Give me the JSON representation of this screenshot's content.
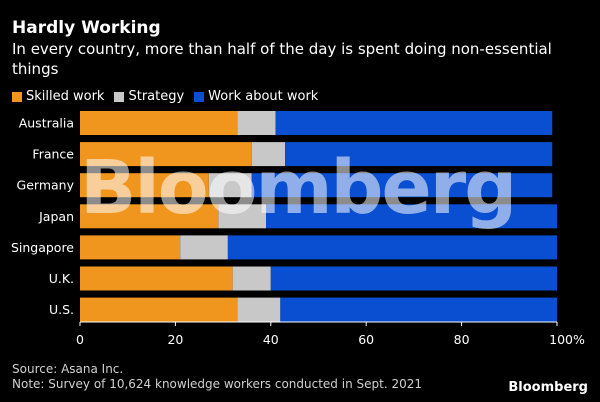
{
  "title": "Hardly Working",
  "subtitle": "In every country, more than half of the day is spent doing non-essential things",
  "watermark": "Bloomberg",
  "source": "Source: Asana Inc.",
  "note": "Note: Survey of 10,624 knowledge workers conducted in Sept. 2021",
  "brand": "Bloomberg",
  "colors": {
    "background": "#000000",
    "skilled_work": "#f0961f",
    "strategy": "#c8c8c8",
    "work_about_work": "#0a4fd1"
  },
  "chart_data": {
    "type": "bar",
    "orientation": "horizontal",
    "stacked": true,
    "categories": [
      "Australia",
      "France",
      "Germany",
      "Japan",
      "Singapore",
      "U.K.",
      "U.S."
    ],
    "series": [
      {
        "name": "Skilled work",
        "color": "#f0961f",
        "values": [
          33,
          36,
          27,
          29,
          21,
          32,
          33
        ]
      },
      {
        "name": "Strategy",
        "color": "#c8c8c8",
        "values": [
          8,
          7,
          9,
          10,
          10,
          8,
          9
        ]
      },
      {
        "name": "Work about work",
        "color": "#0a4fd1",
        "values": [
          58,
          56,
          63,
          61,
          69,
          60,
          58
        ]
      }
    ],
    "x_ticks": [
      "0",
      "20",
      "40",
      "60",
      "80",
      "100%"
    ],
    "xlim": [
      0,
      100
    ],
    "legend_position": "top-left",
    "grid": false
  }
}
